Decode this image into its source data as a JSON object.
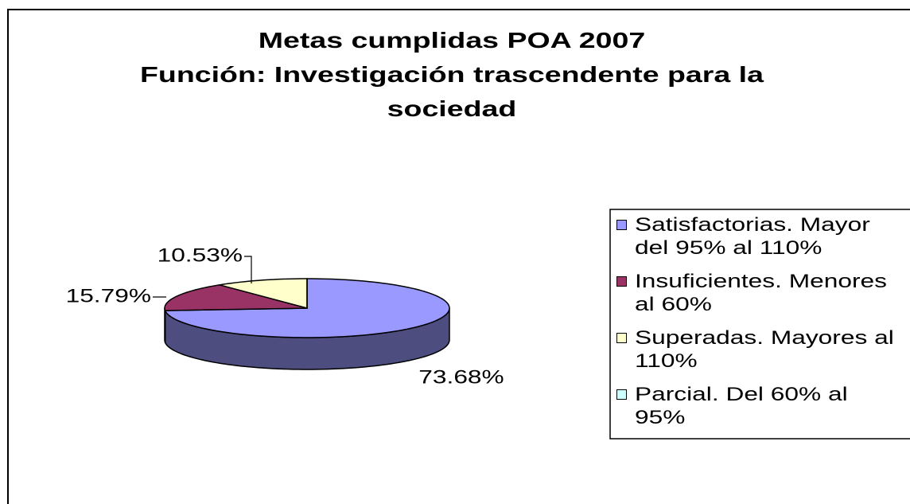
{
  "chart_data": {
    "type": "pie",
    "title": [
      "Metas cumplidas POA 2007",
      "Función: Investigación trascendente para la sociedad"
    ],
    "categories": [
      "Satisfactorias. Mayor del 95% al 110%",
      "Insuficientes. Menores al 60%",
      "Superadas. Mayores al 110%",
      "Parcial. Del 60% al 95%"
    ],
    "values": [
      73.68,
      15.79,
      10.53,
      0
    ],
    "value_labels": [
      "73.68%",
      "15.79%",
      "10.53%",
      null
    ],
    "colors": [
      "#9999ff",
      "#993366",
      "#ffffcc",
      "#ccffff"
    ],
    "legend": "right"
  }
}
